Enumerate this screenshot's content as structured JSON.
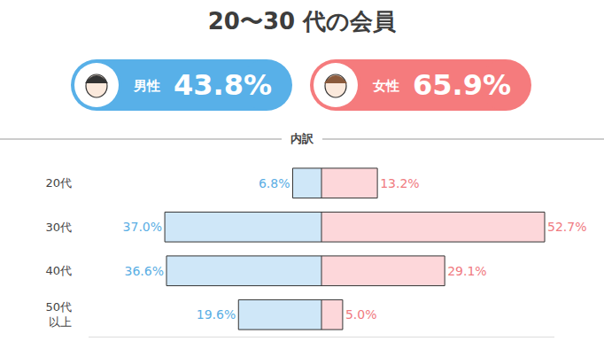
{
  "chart_data": {
    "type": "bar",
    "orientation": "horizontal",
    "title": "20〜30 代の会員",
    "subtitle": "内訳",
    "categories": [
      "20代",
      "30代",
      "40代",
      "50代\n以上"
    ],
    "series": [
      {
        "name": "男性",
        "color": "#cfe7f8",
        "total": "43.8%",
        "values": [
          6.8,
          37.0,
          36.6,
          19.6
        ],
        "value_labels": [
          "6.8%",
          "37.0%",
          "36.6%",
          "19.6%"
        ]
      },
      {
        "name": "女性",
        "color": "#fdd7da",
        "total": "65.9%",
        "values": [
          13.2,
          52.7,
          29.1,
          5.0
        ],
        "value_labels": [
          "13.2%",
          "52.7%",
          "29.1%",
          "5.0%"
        ]
      }
    ],
    "xlim": [
      0,
      55
    ],
    "xticks": [
      0
    ],
    "data_labels": true,
    "tick_labels": "y",
    "grid": false
  }
}
